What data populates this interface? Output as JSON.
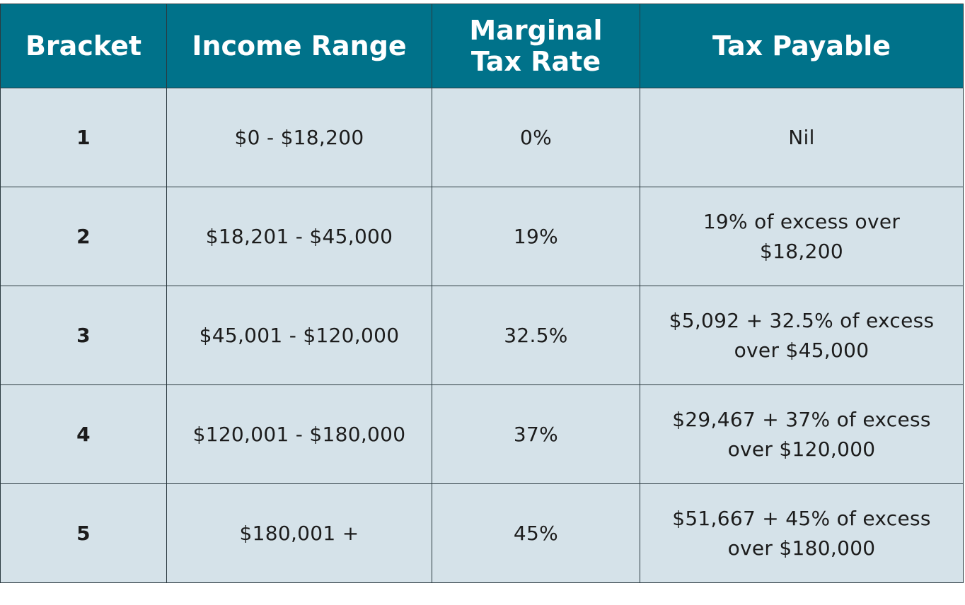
{
  "table": {
    "header": [
      "Bracket",
      "Income Range",
      "Marginal\nTax Rate",
      "Tax Payable"
    ],
    "rows": [
      [
        "1",
        "$0 - $18,200",
        "0%",
        "Nil"
      ],
      [
        "2",
        "$18,201 - $45,000",
        "19%",
        "19% of excess over\n$18,200"
      ],
      [
        "3",
        "$45,001 - $120,000",
        "32.5%",
        "$5,092 + 32.5% of excess\nover $45,000"
      ],
      [
        "4",
        "$120,001 - $180,000",
        "37%",
        "$29,467 + 37% of excess\nover $120,000"
      ],
      [
        "5",
        "$180,001 +",
        "45%",
        "$51,667 + 45% of excess\nover $180,000"
      ]
    ]
  }
}
